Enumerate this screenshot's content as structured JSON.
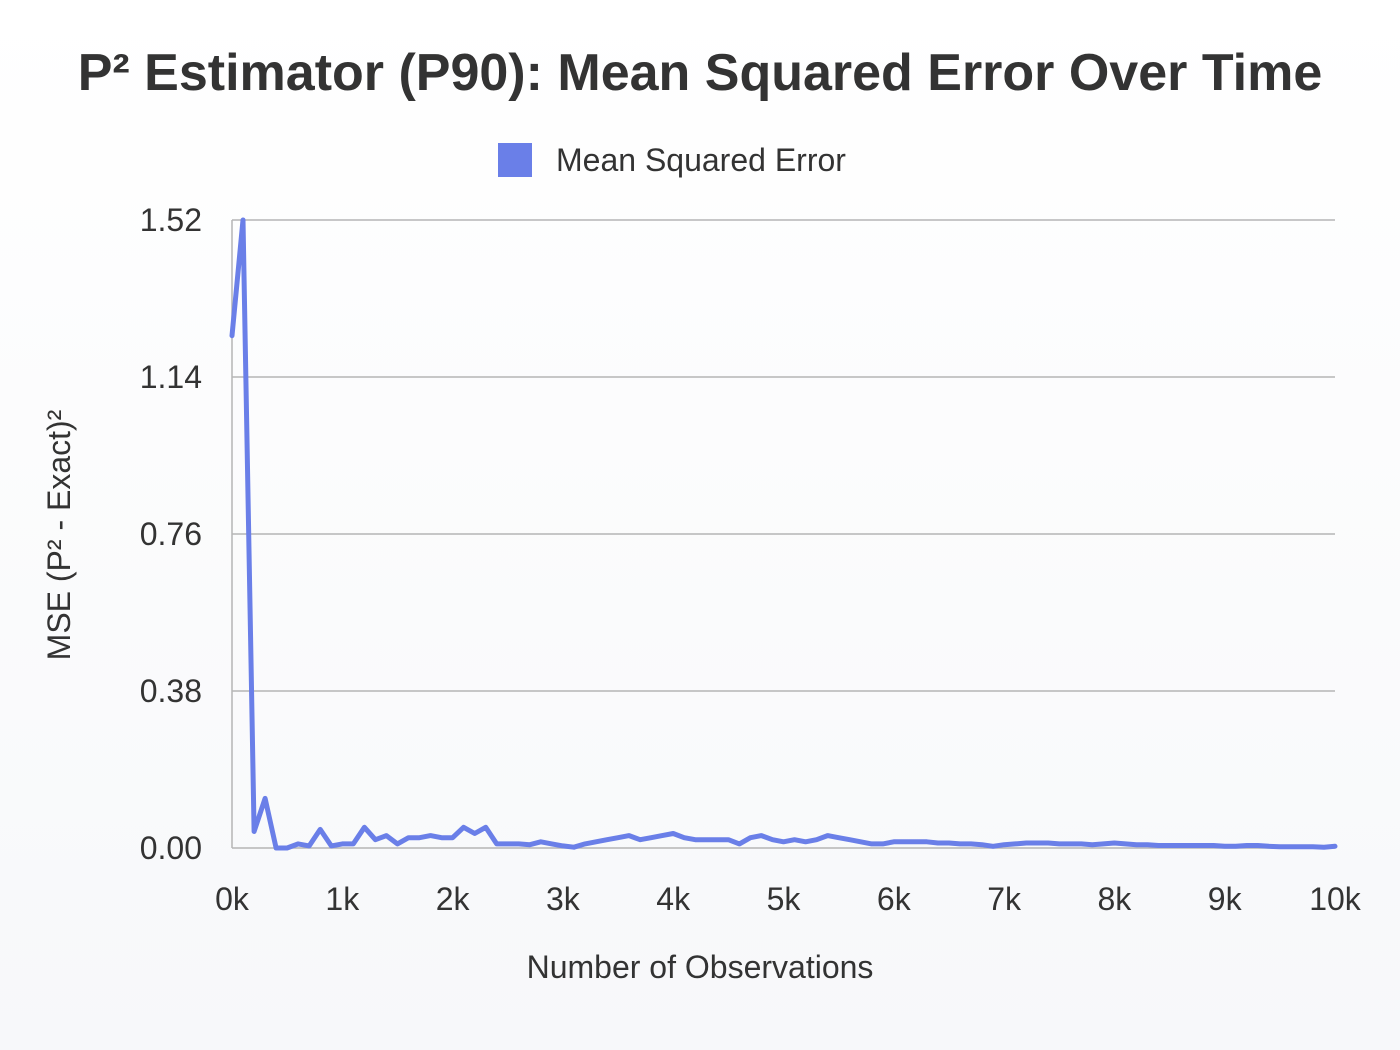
{
  "chart_data": {
    "type": "line",
    "title": "P² Estimator (P90): Mean Squared Error Over Time",
    "xlabel": "Number of Observations",
    "ylabel": "MSE (P² - Exact)²",
    "xlim": [
      0,
      10000
    ],
    "ylim": [
      0,
      1.52
    ],
    "x_ticks": [
      "0k",
      "1k",
      "2k",
      "3k",
      "4k",
      "5k",
      "6k",
      "7k",
      "8k",
      "9k",
      "10k"
    ],
    "y_ticks": [
      "0.00",
      "0.38",
      "0.76",
      "1.14",
      "1.52"
    ],
    "grid": true,
    "legend_position": "top",
    "series": [
      {
        "name": "Mean Squared Error",
        "color": "#6a7fe8",
        "x": [
          0,
          100,
          200,
          300,
          400,
          500,
          600,
          700,
          800,
          900,
          1000,
          1100,
          1200,
          1300,
          1400,
          1500,
          1600,
          1700,
          1800,
          1900,
          2000,
          2100,
          2200,
          2300,
          2400,
          2500,
          2600,
          2700,
          2800,
          2900,
          3000,
          3100,
          3200,
          3300,
          3400,
          3500,
          3600,
          3700,
          3800,
          3900,
          4000,
          4100,
          4200,
          4300,
          4400,
          4500,
          4600,
          4700,
          4800,
          4900,
          5000,
          5100,
          5200,
          5300,
          5400,
          5500,
          5600,
          5700,
          5800,
          5900,
          6000,
          6100,
          6200,
          6300,
          6400,
          6500,
          6600,
          6700,
          6800,
          6900,
          7000,
          7100,
          7200,
          7300,
          7400,
          7500,
          7600,
          7700,
          7800,
          7900,
          8000,
          8100,
          8200,
          8300,
          8400,
          8500,
          8600,
          8700,
          8800,
          8900,
          9000,
          9100,
          9200,
          9300,
          9400,
          9500,
          9600,
          9700,
          9800,
          9900,
          10000
        ],
        "values": [
          1.24,
          1.52,
          0.04,
          0.12,
          0.0,
          0.0,
          0.01,
          0.005,
          0.045,
          0.005,
          0.01,
          0.01,
          0.05,
          0.02,
          0.03,
          0.01,
          0.025,
          0.025,
          0.03,
          0.025,
          0.025,
          0.05,
          0.035,
          0.05,
          0.01,
          0.01,
          0.01,
          0.008,
          0.015,
          0.01,
          0.005,
          0.002,
          0.01,
          0.015,
          0.02,
          0.025,
          0.03,
          0.02,
          0.025,
          0.03,
          0.035,
          0.025,
          0.02,
          0.02,
          0.02,
          0.02,
          0.01,
          0.025,
          0.03,
          0.02,
          0.015,
          0.02,
          0.015,
          0.02,
          0.03,
          0.025,
          0.02,
          0.015,
          0.01,
          0.01,
          0.015,
          0.015,
          0.015,
          0.015,
          0.012,
          0.012,
          0.01,
          0.01,
          0.008,
          0.004,
          0.008,
          0.01,
          0.012,
          0.012,
          0.012,
          0.01,
          0.01,
          0.01,
          0.008,
          0.01,
          0.012,
          0.01,
          0.008,
          0.008,
          0.006,
          0.006,
          0.006,
          0.006,
          0.006,
          0.006,
          0.004,
          0.004,
          0.006,
          0.006,
          0.004,
          0.003,
          0.003,
          0.003,
          0.003,
          0.002,
          0.004
        ]
      }
    ]
  }
}
